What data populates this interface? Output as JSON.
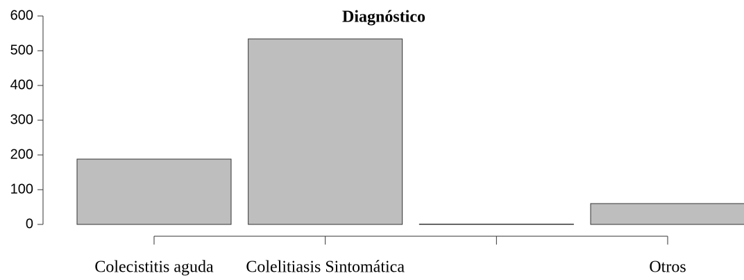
{
  "chart_data": {
    "type": "bar",
    "title": "Diagnóstico",
    "categories": [
      "Colecistitis aguda",
      "Colelitiasis Sintomática",
      null,
      "Otros"
    ],
    "values": [
      188,
      534,
      1,
      60
    ],
    "color": "#bebebe",
    "ylim": [
      0,
      600
    ],
    "yticks": [
      0,
      100,
      200,
      300,
      400,
      500,
      600
    ],
    "grid": false
  }
}
